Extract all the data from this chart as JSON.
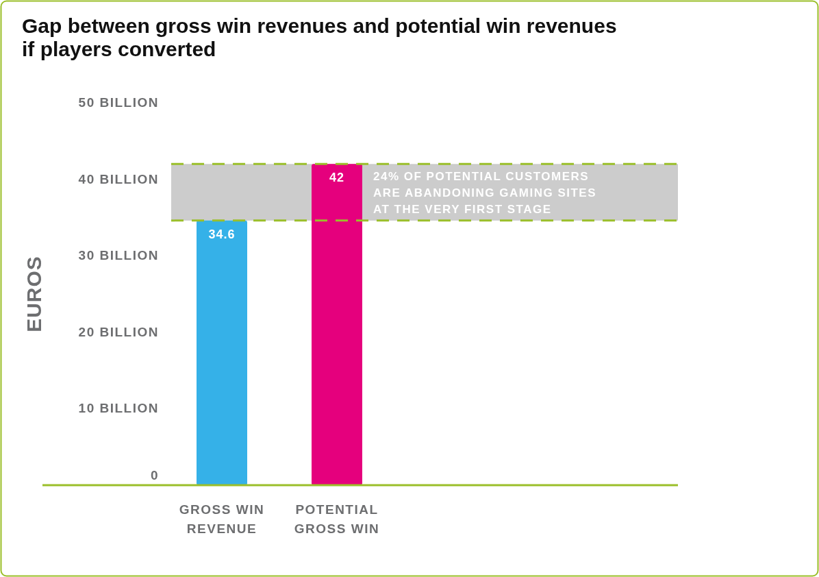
{
  "chart_data": {
    "type": "bar",
    "title": "Gap between gross win revenues and potential win revenues if players converted",
    "ylabel": "EUROS",
    "categories": [
      "GROSS WIN REVENUE",
      "POTENTIAL GROSS WIN"
    ],
    "values": [
      34.6,
      42
    ],
    "colors": [
      "#35b1e8",
      "#e5007d"
    ],
    "data_labels": true,
    "ylim": [
      0,
      50
    ],
    "yticks": [
      0,
      {
        "value": 10,
        "label": "10 BILLION"
      },
      {
        "value": 20,
        "label": "20 BILLION"
      },
      {
        "value": 30,
        "label": "30 BILLION"
      },
      {
        "value": 40,
        "label": "40 BILLION"
      },
      {
        "value": 50,
        "label": "50 BILLION"
      }
    ],
    "bands": [
      {
        "axis": "y",
        "from": 34.6,
        "to": 42,
        "label": "24% OF POTENTIAL CUSTOMERS ARE ABANDONING GAMING SITES AT THE VERY FIRST STAGE",
        "color": "#cccccc"
      }
    ],
    "ref_lines": [
      {
        "axis": "y",
        "value": 42,
        "color": "#9bbf2a",
        "line_style": "dashed"
      },
      {
        "axis": "y",
        "value": 34.6,
        "color": "#9bbf2a",
        "line_style": "dashed"
      }
    ]
  }
}
